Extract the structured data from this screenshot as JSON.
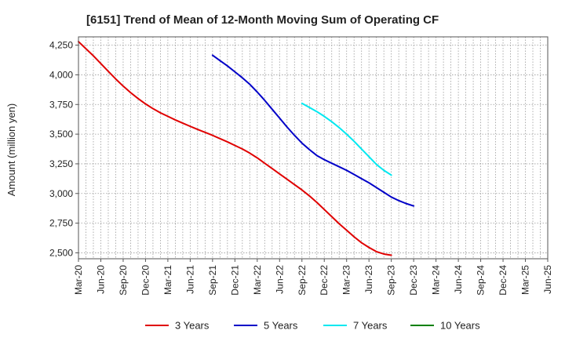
{
  "chart_data": {
    "type": "line",
    "title": "[6151]  Trend of Mean of 12-Month Moving Sum of Operating CF",
    "xlabel": "",
    "ylabel": "Amount (million yen)",
    "ylim": [
      2450,
      4320
    ],
    "yticks": [
      2500,
      2750,
      3000,
      3250,
      3500,
      3750,
      4000,
      4250
    ],
    "ytick_labels": [
      "2,500",
      "2,750",
      "3,000",
      "3,250",
      "3,500",
      "3,750",
      "4,000",
      "4,250"
    ],
    "x_categories": [
      "Mar-20",
      "Jun-20",
      "Sep-20",
      "Dec-20",
      "Mar-21",
      "Jun-21",
      "Sep-21",
      "Dec-21",
      "Mar-22",
      "Jun-22",
      "Sep-22",
      "Dec-22",
      "Mar-23",
      "Jun-23",
      "Sep-23",
      "Dec-23",
      "Mar-24",
      "Jun-24",
      "Sep-24",
      "Dec-24",
      "Mar-25",
      "Jun-25"
    ],
    "grid": true,
    "legend_position": "bottom",
    "series": [
      {
        "name": "3 Years",
        "color": "#e00000",
        "start_index": 0,
        "values": [
          4280,
          4220,
          4160,
          4095,
          4030,
          3965,
          3905,
          3850,
          3800,
          3755,
          3715,
          3680,
          3650,
          3620,
          3593,
          3566,
          3540,
          3515,
          3490,
          3462,
          3435,
          3405,
          3375,
          3340,
          3300,
          3255,
          3210,
          3165,
          3120,
          3075,
          3030,
          2980,
          2925,
          2865,
          2805,
          2745,
          2690,
          2635,
          2585,
          2545,
          2510,
          2490,
          2480
        ]
      },
      {
        "name": "5 Years",
        "color": "#0000c8",
        "start_index": 18,
        "values": [
          4165,
          4120,
          4075,
          4025,
          3975,
          3920,
          3855,
          3785,
          3710,
          3635,
          3560,
          3490,
          3425,
          3370,
          3320,
          3285,
          3255,
          3225,
          3195,
          3160,
          3125,
          3090,
          3050,
          3010,
          2970,
          2940,
          2915,
          2895
        ]
      },
      {
        "name": "7 Years",
        "color": "#00e8f0",
        "start_index": 30,
        "values": [
          3760,
          3725,
          3690,
          3650,
          3605,
          3555,
          3500,
          3440,
          3375,
          3310,
          3245,
          3195,
          3155
        ]
      },
      {
        "name": "10 Years",
        "color": "#008000",
        "start_index": 0,
        "values": []
      }
    ]
  }
}
